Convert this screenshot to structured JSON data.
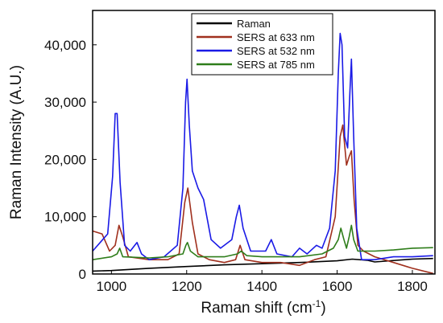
{
  "chart_data": {
    "type": "line",
    "title": "",
    "xlabel_main": "Raman shift (cm",
    "xlabel_sup": "-1",
    "xlabel_tail": ")",
    "ylabel": "Raman Intensity (A.U.)",
    "xlim": [
      950,
      1860
    ],
    "ylim": [
      0,
      46000
    ],
    "x_ticks": [
      1000,
      1200,
      1400,
      1600,
      1800
    ],
    "y_ticks": [
      0,
      10000,
      20000,
      30000,
      40000
    ],
    "y_tick_labels": [
      "0",
      "10,000",
      "20,000",
      "30,000",
      "40,000"
    ],
    "grid": false,
    "legend_position": "top-center",
    "series": [
      {
        "name": "Raman",
        "color": "#000000",
        "points": [
          [
            950,
            500
          ],
          [
            1000,
            600
          ],
          [
            1100,
            1000
          ],
          [
            1200,
            1300
          ],
          [
            1300,
            1600
          ],
          [
            1400,
            1800
          ],
          [
            1500,
            2000
          ],
          [
            1600,
            2300
          ],
          [
            1640,
            2600
          ],
          [
            1680,
            2400
          ],
          [
            1700,
            2100
          ],
          [
            1800,
            2600
          ],
          [
            1855,
            2700
          ]
        ]
      },
      {
        "name": "SERS at 633 nm",
        "color": "#a0301e",
        "points": [
          [
            950,
            7500
          ],
          [
            975,
            7000
          ],
          [
            995,
            4000
          ],
          [
            1010,
            5000
          ],
          [
            1020,
            8500
          ],
          [
            1030,
            6500
          ],
          [
            1045,
            3000
          ],
          [
            1100,
            2500
          ],
          [
            1150,
            2500
          ],
          [
            1180,
            3500
          ],
          [
            1195,
            12500
          ],
          [
            1203,
            15000
          ],
          [
            1215,
            9000
          ],
          [
            1230,
            3500
          ],
          [
            1260,
            2500
          ],
          [
            1300,
            2000
          ],
          [
            1330,
            2500
          ],
          [
            1342,
            5000
          ],
          [
            1355,
            2500
          ],
          [
            1400,
            2000
          ],
          [
            1450,
            2000
          ],
          [
            1500,
            1500
          ],
          [
            1540,
            2500
          ],
          [
            1570,
            3000
          ],
          [
            1595,
            10000
          ],
          [
            1608,
            24000
          ],
          [
            1615,
            26000
          ],
          [
            1625,
            19000
          ],
          [
            1632,
            20500
          ],
          [
            1638,
            21500
          ],
          [
            1645,
            13000
          ],
          [
            1655,
            5000
          ],
          [
            1670,
            4000
          ],
          [
            1700,
            3000
          ],
          [
            1750,
            2000
          ],
          [
            1800,
            1000
          ],
          [
            1855,
            100
          ]
        ]
      },
      {
        "name": "SERS at 532 nm",
        "color": "#1a1ae6",
        "points": [
          [
            950,
            4000
          ],
          [
            990,
            7000
          ],
          [
            1003,
            17000
          ],
          [
            1010,
            28000
          ],
          [
            1015,
            28000
          ],
          [
            1023,
            16000
          ],
          [
            1035,
            5000
          ],
          [
            1050,
            4000
          ],
          [
            1068,
            5500
          ],
          [
            1080,
            3500
          ],
          [
            1100,
            2500
          ],
          [
            1140,
            3000
          ],
          [
            1175,
            5000
          ],
          [
            1190,
            15000
          ],
          [
            1197,
            30000
          ],
          [
            1201,
            34000
          ],
          [
            1207,
            26000
          ],
          [
            1215,
            18000
          ],
          [
            1230,
            15000
          ],
          [
            1245,
            13000
          ],
          [
            1265,
            6000
          ],
          [
            1290,
            4500
          ],
          [
            1320,
            6000
          ],
          [
            1332,
            10000
          ],
          [
            1340,
            12000
          ],
          [
            1350,
            8000
          ],
          [
            1370,
            4000
          ],
          [
            1410,
            4000
          ],
          [
            1425,
            6000
          ],
          [
            1440,
            3500
          ],
          [
            1480,
            3000
          ],
          [
            1500,
            4500
          ],
          [
            1520,
            3500
          ],
          [
            1545,
            5000
          ],
          [
            1560,
            4500
          ],
          [
            1580,
            8000
          ],
          [
            1595,
            18000
          ],
          [
            1603,
            35000
          ],
          [
            1608,
            42000
          ],
          [
            1613,
            40000
          ],
          [
            1620,
            24000
          ],
          [
            1628,
            22000
          ],
          [
            1634,
            32000
          ],
          [
            1638,
            37500
          ],
          [
            1644,
            24000
          ],
          [
            1652,
            8000
          ],
          [
            1665,
            2500
          ],
          [
            1700,
            2500
          ],
          [
            1750,
            3000
          ],
          [
            1800,
            3000
          ],
          [
            1855,
            3200
          ]
        ]
      },
      {
        "name": "SERS at 785 nm",
        "color": "#2e7d1a",
        "points": [
          [
            950,
            2500
          ],
          [
            1000,
            3000
          ],
          [
            1015,
            3500
          ],
          [
            1022,
            4500
          ],
          [
            1030,
            3000
          ],
          [
            1100,
            2800
          ],
          [
            1150,
            3000
          ],
          [
            1190,
            3500
          ],
          [
            1198,
            5000
          ],
          [
            1202,
            5500
          ],
          [
            1210,
            4000
          ],
          [
            1230,
            3000
          ],
          [
            1300,
            3000
          ],
          [
            1335,
            3500
          ],
          [
            1345,
            4000
          ],
          [
            1360,
            3200
          ],
          [
            1400,
            3000
          ],
          [
            1500,
            3000
          ],
          [
            1560,
            3500
          ],
          [
            1590,
            4500
          ],
          [
            1603,
            6000
          ],
          [
            1610,
            8000
          ],
          [
            1618,
            6000
          ],
          [
            1625,
            4500
          ],
          [
            1632,
            6500
          ],
          [
            1638,
            8500
          ],
          [
            1644,
            6000
          ],
          [
            1655,
            4000
          ],
          [
            1700,
            4000
          ],
          [
            1750,
            4200
          ],
          [
            1800,
            4500
          ],
          [
            1855,
            4600
          ]
        ]
      }
    ]
  }
}
